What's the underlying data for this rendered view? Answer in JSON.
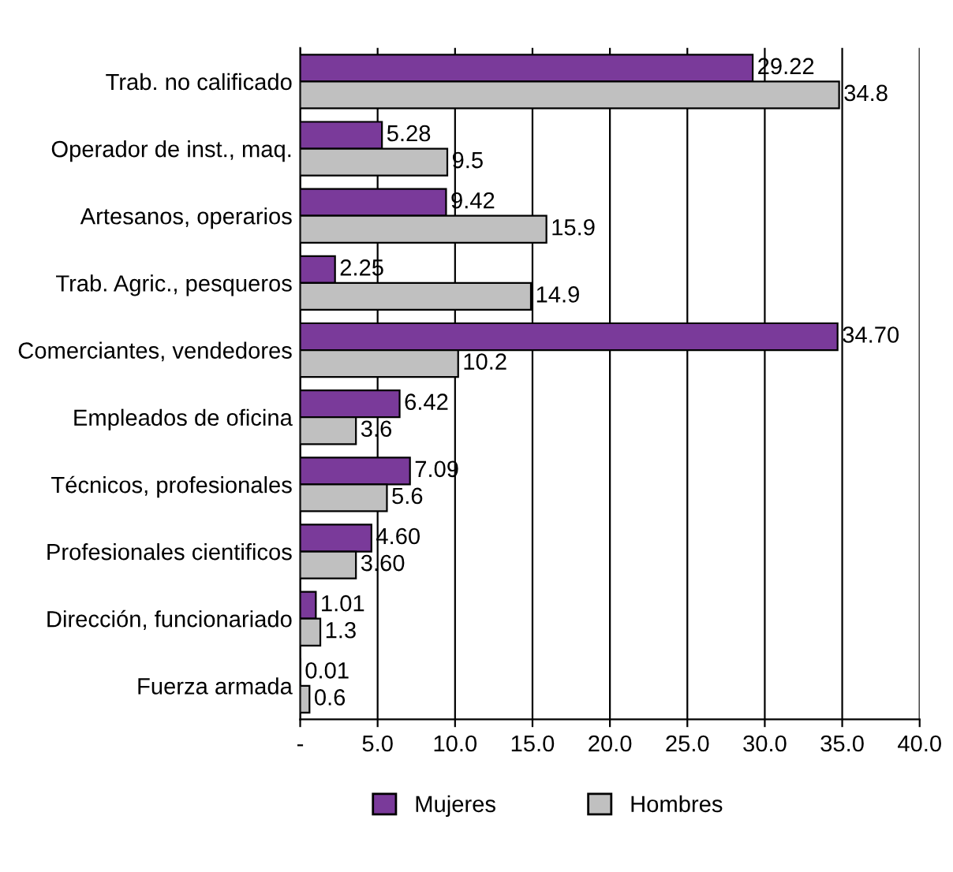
{
  "chart_data": {
    "type": "bar",
    "orientation": "horizontal",
    "categories": [
      "Trab. no calificado",
      "Operador de inst., maq.",
      "Artesanos, operarios",
      "Trab. Agric., pesqueros",
      "Comerciantes, vendedores",
      "Empleados de oficina",
      "Técnicos, profesionales",
      "Profesionales cientificos",
      "Dirección, funcionariado",
      "Fuerza armada"
    ],
    "series": [
      {
        "name": "Mujeres",
        "color": "#7a3a9a",
        "values": [
          29.22,
          5.28,
          9.42,
          2.25,
          34.7,
          6.42,
          7.09,
          4.6,
          1.01,
          0.01
        ],
        "value_labels": [
          "29.22",
          "5.28",
          "9.42",
          "2.25",
          "34.70",
          "6.42",
          "7.09",
          "4.60",
          "1.01",
          "0.01"
        ]
      },
      {
        "name": "Hombres",
        "color": "#c0c0c0",
        "values": [
          34.8,
          9.5,
          15.9,
          14.9,
          10.2,
          3.6,
          5.6,
          3.6,
          1.3,
          0.6
        ],
        "value_labels": [
          "34.8",
          "9.5",
          "15.9",
          "14.9",
          "10.2",
          "3.6",
          "5.6",
          "3.60",
          "1.3",
          "0.6"
        ]
      }
    ],
    "xlim": [
      0,
      40
    ],
    "xticks": [
      {
        "value": 0,
        "label": "-"
      },
      {
        "value": 5,
        "label": "5.0"
      },
      {
        "value": 10,
        "label": "10.0"
      },
      {
        "value": 15,
        "label": "15.0"
      },
      {
        "value": 20,
        "label": "20.0"
      },
      {
        "value": 25,
        "label": "25.0"
      },
      {
        "value": 30,
        "label": "30.0"
      },
      {
        "value": 35,
        "label": "35.0"
      },
      {
        "value": 40,
        "label": "40.0"
      }
    ],
    "grid": "x",
    "legend": "bottom"
  }
}
